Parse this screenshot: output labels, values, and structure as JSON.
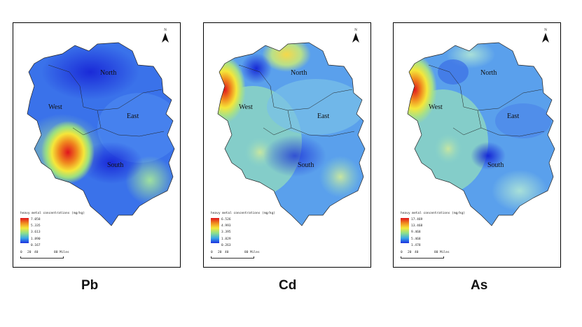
{
  "maps": [
    {
      "element": "Pb",
      "regions": {
        "north": "North",
        "west": "West",
        "east": "East",
        "south": "South"
      },
      "legend_title": "heavy metal concentrations (mg/kg)",
      "legend_values": [
        "7.058",
        "5.335",
        "3.613",
        "1.890",
        "0.167"
      ],
      "scale_labels": [
        "0",
        "20",
        "40",
        "80 Miles"
      ],
      "north": "N"
    },
    {
      "element": "Cd",
      "regions": {
        "north": "North",
        "west": "West",
        "east": "East",
        "south": "South"
      },
      "legend_title": "heavy metal concentrations (mg/kg)",
      "legend_values": [
        "6.526",
        "4.993",
        "3.395",
        "1.829",
        "0.263"
      ],
      "scale_labels": [
        "0",
        "20",
        "40",
        "80 Miles"
      ],
      "north": "N"
    },
    {
      "element": "As",
      "regions": {
        "north": "North",
        "west": "West",
        "east": "East",
        "south": "South"
      },
      "legend_title": "heavy metal concentrations (mg/kg)",
      "legend_values": [
        "17.469",
        "13.468",
        "9.468",
        "5.468",
        "1.478"
      ],
      "scale_labels": [
        "0",
        "20",
        "40",
        "80 Miles"
      ],
      "north": "N"
    }
  ],
  "colors": {
    "high": "#e0151d",
    "mid_high": "#f08a1f",
    "mid": "#f5e73a",
    "mid_low": "#8fe08a",
    "low_mid": "#3aa8e8",
    "low": "#1b2fe0"
  }
}
